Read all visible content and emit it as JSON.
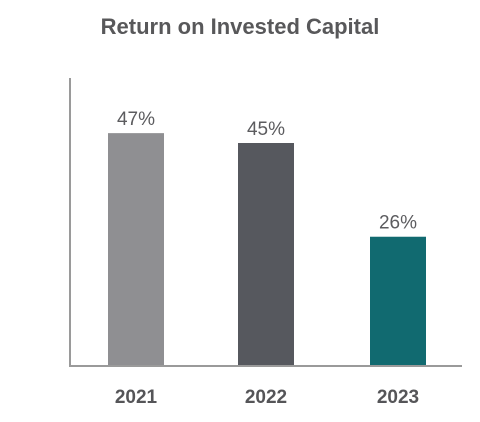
{
  "chart_data": {
    "type": "bar",
    "title": "Return on Invested Capital",
    "xlabel": "",
    "ylabel": "",
    "categories": [
      "2021",
      "2022",
      "2023"
    ],
    "values": [
      47,
      45,
      26
    ],
    "value_labels": [
      "47%",
      "45%",
      "26%"
    ],
    "bar_colors": [
      "#8f8f92",
      "#56585e",
      "#116a70"
    ],
    "ylim": [
      0,
      60
    ],
    "grid": false,
    "legend": "none"
  }
}
